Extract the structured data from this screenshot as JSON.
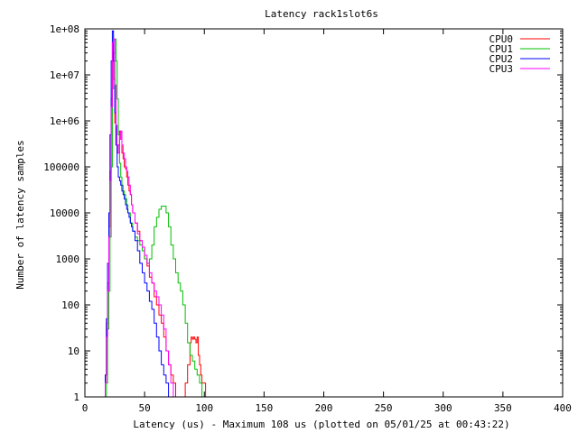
{
  "chart_data": {
    "type": "line",
    "title": "Latency rack1slot6s",
    "xlabel": "Latency (us) - Maximum 108 us (plotted on 05/01/25 at 00:43:22)",
    "ylabel": "Number of latency samples",
    "xlim": [
      0,
      400
    ],
    "ylim": [
      1,
      100000000
    ],
    "y_scale": "log",
    "grid": false,
    "legend_position": "top-right",
    "x_ticks": [
      0,
      50,
      100,
      150,
      200,
      250,
      300,
      350,
      400
    ],
    "x_tick_labels": [
      "0",
      "50",
      "100",
      "150",
      "200",
      "250",
      "300",
      "350",
      "400"
    ],
    "y_ticks": [
      1,
      10,
      100,
      1000,
      10000,
      100000,
      1000000,
      10000000,
      100000000
    ],
    "y_tick_labels": [
      "1",
      "10",
      "100",
      "1000",
      "10000",
      "100000",
      "1e+06",
      "1e+07",
      "1e+08"
    ],
    "series": [
      {
        "name": "CPU0",
        "color": "#ff0000",
        "x": [
          16,
          17,
          18,
          19,
          20,
          21,
          22,
          23,
          24,
          25,
          26,
          27,
          28,
          29,
          30,
          31,
          32,
          33,
          34,
          35,
          36,
          37,
          38,
          39,
          40,
          42,
          44,
          46,
          48,
          50,
          52,
          54,
          56,
          58,
          60,
          62,
          64,
          66,
          68,
          70,
          72,
          74,
          76,
          78,
          80,
          82,
          84,
          86,
          88,
          89,
          90,
          91,
          92,
          93,
          94,
          95,
          96,
          97,
          98,
          99,
          100,
          101,
          102,
          103,
          104,
          105,
          106,
          107,
          108
        ],
        "y": [
          1,
          3,
          40,
          300,
          5000,
          80000,
          3000000,
          20000000,
          8000000,
          900000,
          300000,
          200000,
          300000,
          600000,
          400000,
          200000,
          150000,
          100000,
          90000,
          60000,
          40000,
          30000,
          25000,
          15000,
          10000,
          6000,
          4000,
          2500,
          1800,
          1000,
          700,
          400,
          300,
          150,
          100,
          60,
          40,
          20,
          10,
          5,
          3,
          2,
          1,
          1,
          1,
          1,
          2,
          5,
          15,
          20,
          18,
          20,
          18,
          15,
          20,
          8,
          5,
          3,
          2,
          2,
          2,
          1,
          1,
          1,
          1,
          1,
          1,
          1,
          1
        ]
      },
      {
        "name": "CPU1",
        "color": "#00c000",
        "x": [
          18,
          19,
          20,
          21,
          22,
          23,
          24,
          25,
          26,
          27,
          28,
          29,
          30,
          31,
          32,
          33,
          34,
          35,
          36,
          38,
          40,
          42,
          44,
          46,
          48,
          50,
          52,
          54,
          56,
          58,
          60,
          62,
          64,
          66,
          68,
          70,
          72,
          74,
          76,
          78,
          80,
          82,
          84,
          86,
          88,
          90,
          92,
          94,
          96,
          98,
          100
        ],
        "y": [
          2,
          30,
          200,
          3000,
          100000,
          5000000,
          30000000,
          60000000,
          20000000,
          3000000,
          500000,
          120000,
          60000,
          40000,
          30000,
          25000,
          20000,
          15000,
          10000,
          6000,
          4000,
          3000,
          2500,
          2000,
          1500,
          1000,
          800,
          1000,
          2000,
          5000,
          8000,
          12000,
          14000,
          14000,
          10000,
          5000,
          2000,
          1000,
          500,
          300,
          200,
          100,
          40,
          15,
          8,
          6,
          4,
          3,
          2,
          1,
          1
        ]
      },
      {
        "name": "CPU2",
        "color": "#0000ff",
        "x": [
          16,
          17,
          18,
          19,
          20,
          21,
          22,
          23,
          24,
          25,
          26,
          27,
          28,
          29,
          30,
          31,
          32,
          33,
          34,
          35,
          36,
          37,
          38,
          39,
          40,
          42,
          44,
          46,
          48,
          50,
          52,
          54,
          56,
          58,
          60,
          62,
          64,
          66,
          68,
          70
        ],
        "y": [
          1,
          3,
          50,
          800,
          10000,
          500000,
          20000000,
          90000000,
          20000000,
          1500000,
          300000,
          100000,
          60000,
          50000,
          40000,
          30000,
          25000,
          20000,
          15000,
          12000,
          10000,
          8000,
          6000,
          5000,
          4000,
          2500,
          1500,
          800,
          500,
          300,
          200,
          120,
          80,
          40,
          20,
          10,
          5,
          3,
          2,
          1
        ]
      },
      {
        "name": "CPU3",
        "color": "#ff00ff",
        "x": [
          17,
          18,
          19,
          20,
          21,
          22,
          23,
          24,
          25,
          26,
          27,
          28,
          29,
          30,
          31,
          32,
          33,
          34,
          35,
          36,
          37,
          38,
          39,
          40,
          42,
          44,
          46,
          48,
          50,
          52,
          54,
          56,
          58,
          60,
          62,
          64,
          66,
          68,
          70,
          72,
          74
        ],
        "y": [
          2,
          20,
          200,
          3000,
          50000,
          2000000,
          50000000,
          60000000,
          6000000,
          800000,
          300000,
          200000,
          400000,
          600000,
          300000,
          200000,
          150000,
          100000,
          80000,
          60000,
          40000,
          25000,
          15000,
          10000,
          6000,
          3500,
          2500,
          1800,
          1200,
          800,
          500,
          300,
          200,
          150,
          100,
          60,
          30,
          10,
          5,
          2,
          1
        ]
      }
    ]
  }
}
